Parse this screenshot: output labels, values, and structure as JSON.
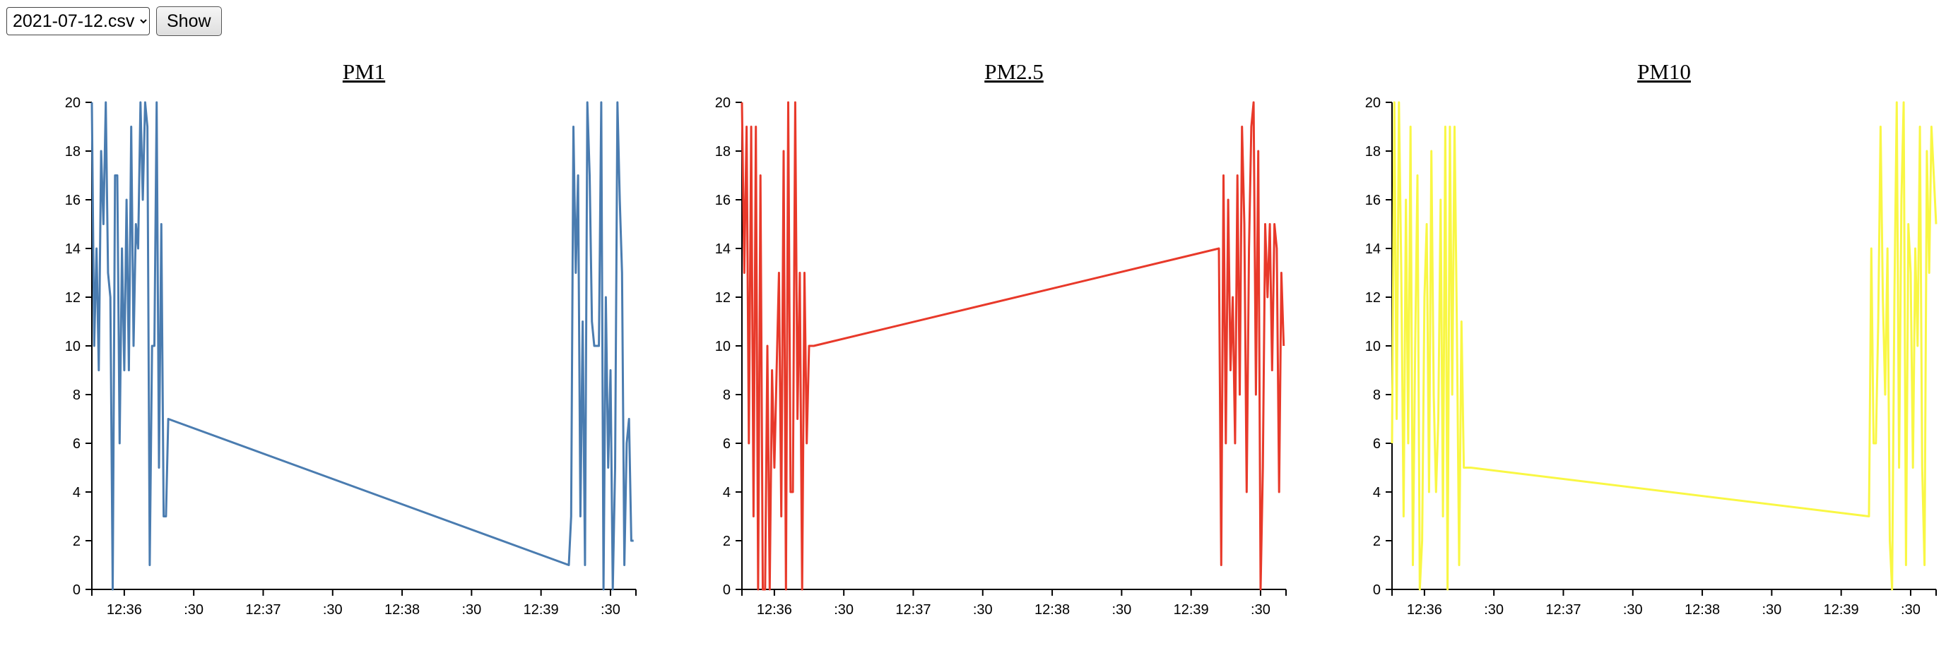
{
  "controls": {
    "file_select": {
      "selected": "2021-07-12.csv"
    },
    "show_label": "Show"
  },
  "chart_data": [
    {
      "type": "line",
      "title": "PM1",
      "color": "#4a7cb0",
      "xlabel": "",
      "ylabel": "",
      "ylim": [
        0,
        20
      ],
      "y_ticks": [
        0,
        2,
        4,
        6,
        8,
        10,
        12,
        14,
        16,
        18,
        20
      ],
      "x_ticks": [
        {
          "t": "12:36:00",
          "label": "12:36"
        },
        {
          "t": "12:36:30",
          "label": ":30"
        },
        {
          "t": "12:37:00",
          "label": "12:37"
        },
        {
          "t": "12:37:30",
          "label": ":30"
        },
        {
          "t": "12:38:00",
          "label": "12:38"
        },
        {
          "t": "12:38:30",
          "label": ":30"
        },
        {
          "t": "12:39:00",
          "label": "12:39"
        },
        {
          "t": "12:39:30",
          "label": ":30"
        }
      ],
      "xlim": [
        "12:35:46",
        "12:39:41"
      ],
      "grid": false,
      "x": [
        "12:35:46",
        "12:35:47",
        "12:35:48",
        "12:35:49",
        "12:35:50",
        "12:35:51",
        "12:35:52",
        "12:35:53",
        "12:35:54",
        "12:35:55",
        "12:35:56",
        "12:35:57",
        "12:35:58",
        "12:35:59",
        "12:36:00",
        "12:36:01",
        "12:36:02",
        "12:36:03",
        "12:36:04",
        "12:36:05",
        "12:36:06",
        "12:36:07",
        "12:36:08",
        "12:36:09",
        "12:36:10",
        "12:36:11",
        "12:36:12",
        "12:36:13",
        "12:36:14",
        "12:36:15",
        "12:36:16",
        "12:36:17",
        "12:36:18",
        "12:36:19",
        "12:39:12",
        "12:39:13",
        "12:39:14",
        "12:39:15",
        "12:39:16",
        "12:39:17",
        "12:39:18",
        "12:39:19",
        "12:39:20",
        "12:39:21",
        "12:39:22",
        "12:39:23",
        "12:39:24",
        "12:39:25",
        "12:39:26",
        "12:39:27",
        "12:39:28",
        "12:39:29",
        "12:39:30",
        "12:39:31",
        "12:39:32",
        "12:39:33",
        "12:39:34",
        "12:39:35",
        "12:39:36",
        "12:39:37",
        "12:39:38",
        "12:39:39",
        "12:39:40"
      ],
      "values": [
        20,
        10,
        14,
        9,
        18,
        15,
        20,
        13,
        12,
        0,
        17,
        17,
        6,
        14,
        9,
        16,
        9,
        19,
        10,
        15,
        14,
        20,
        16,
        20,
        19,
        1,
        10,
        10,
        20,
        5,
        15,
        3,
        3,
        7,
        1,
        3,
        19,
        13,
        17,
        3,
        11,
        1,
        20,
        17,
        11,
        10,
        10,
        10,
        20,
        0,
        12,
        5,
        9,
        0,
        5,
        20,
        16,
        13,
        1,
        6,
        7,
        2,
        2
      ]
    },
    {
      "type": "line",
      "title": "PM2.5",
      "color": "#e8392a",
      "xlabel": "",
      "ylabel": "",
      "ylim": [
        0,
        20
      ],
      "y_ticks": [
        0,
        2,
        4,
        6,
        8,
        10,
        12,
        14,
        16,
        18,
        20
      ],
      "x_ticks": [
        {
          "t": "12:36:00",
          "label": "12:36"
        },
        {
          "t": "12:36:30",
          "label": ":30"
        },
        {
          "t": "12:37:00",
          "label": "12:37"
        },
        {
          "t": "12:37:30",
          "label": ":30"
        },
        {
          "t": "12:38:00",
          "label": "12:38"
        },
        {
          "t": "12:38:30",
          "label": ":30"
        },
        {
          "t": "12:39:00",
          "label": "12:39"
        },
        {
          "t": "12:39:30",
          "label": ":30"
        }
      ],
      "xlim": [
        "12:35:46",
        "12:39:41"
      ],
      "grid": false,
      "x": [
        "12:35:46",
        "12:35:47",
        "12:35:48",
        "12:35:49",
        "12:35:50",
        "12:35:51",
        "12:35:52",
        "12:35:53",
        "12:35:54",
        "12:35:55",
        "12:35:56",
        "12:35:57",
        "12:35:58",
        "12:35:59",
        "12:36:00",
        "12:36:01",
        "12:36:02",
        "12:36:03",
        "12:36:04",
        "12:36:05",
        "12:36:06",
        "12:36:07",
        "12:36:08",
        "12:36:09",
        "12:36:10",
        "12:36:11",
        "12:36:12",
        "12:36:13",
        "12:36:14",
        "12:36:15",
        "12:36:16",
        "12:36:17",
        "12:39:12",
        "12:39:13",
        "12:39:14",
        "12:39:15",
        "12:39:16",
        "12:39:17",
        "12:39:18",
        "12:39:19",
        "12:39:20",
        "12:39:21",
        "12:39:22",
        "12:39:23",
        "12:39:24",
        "12:39:25",
        "12:39:26",
        "12:39:27",
        "12:39:28",
        "12:39:29",
        "12:39:30",
        "12:39:31",
        "12:39:32",
        "12:39:33",
        "12:39:34",
        "12:39:35",
        "12:39:36",
        "12:39:37",
        "12:39:38",
        "12:39:39",
        "12:39:40"
      ],
      "values": [
        20,
        13,
        19,
        6,
        19,
        3,
        19,
        0,
        17,
        0,
        0,
        10,
        0,
        9,
        5,
        9,
        13,
        3,
        18,
        0,
        20,
        4,
        4,
        20,
        7,
        13,
        0,
        13,
        6,
        10,
        10,
        10,
        14,
        1,
        17,
        6,
        16,
        9,
        12,
        6,
        17,
        8,
        19,
        15,
        4,
        14,
        19,
        20,
        8,
        18,
        0,
        5,
        15,
        12,
        15,
        9,
        15,
        14,
        4,
        13,
        10
      ]
    },
    {
      "type": "line",
      "title": "PM10",
      "color": "#f9f744",
      "xlabel": "",
      "ylabel": "",
      "ylim": [
        0,
        20
      ],
      "y_ticks": [
        0,
        2,
        4,
        6,
        8,
        10,
        12,
        14,
        16,
        18,
        20
      ],
      "x_ticks": [
        {
          "t": "12:36:00",
          "label": "12:36"
        },
        {
          "t": "12:36:30",
          "label": ":30"
        },
        {
          "t": "12:37:00",
          "label": "12:37"
        },
        {
          "t": "12:37:30",
          "label": ":30"
        },
        {
          "t": "12:38:00",
          "label": "12:38"
        },
        {
          "t": "12:38:30",
          "label": ":30"
        },
        {
          "t": "12:39:00",
          "label": "12:39"
        },
        {
          "t": "12:39:30",
          "label": ":30"
        }
      ],
      "xlim": [
        "12:35:46",
        "12:39:41"
      ],
      "grid": false,
      "x": [
        "12:35:46",
        "12:35:47",
        "12:35:48",
        "12:35:49",
        "12:35:50",
        "12:35:51",
        "12:35:52",
        "12:35:53",
        "12:35:54",
        "12:35:55",
        "12:35:56",
        "12:35:57",
        "12:35:58",
        "12:35:59",
        "12:36:00",
        "12:36:01",
        "12:36:02",
        "12:36:03",
        "12:36:04",
        "12:36:05",
        "12:36:06",
        "12:36:07",
        "12:36:08",
        "12:36:09",
        "12:36:10",
        "12:36:11",
        "12:36:12",
        "12:36:13",
        "12:36:14",
        "12:36:15",
        "12:36:16",
        "12:36:17",
        "12:36:18",
        "12:36:19",
        "12:36:20",
        "12:39:12",
        "12:39:13",
        "12:39:14",
        "12:39:15",
        "12:39:16",
        "12:39:17",
        "12:39:18",
        "12:39:19",
        "12:39:20",
        "12:39:21",
        "12:39:22",
        "12:39:23",
        "12:39:24",
        "12:39:25",
        "12:39:26",
        "12:39:27",
        "12:39:28",
        "12:39:29",
        "12:39:30",
        "12:39:31",
        "12:39:32",
        "12:39:33",
        "12:39:34",
        "12:39:35",
        "12:39:36",
        "12:39:37",
        "12:39:38",
        "12:39:39",
        "12:39:40",
        "12:39:41"
      ],
      "values": [
        6,
        20,
        7,
        20,
        13,
        3,
        16,
        6,
        19,
        1,
        10,
        17,
        0,
        2,
        12,
        15,
        4,
        18,
        8,
        4,
        7,
        16,
        3,
        19,
        0,
        19,
        8,
        19,
        11,
        1,
        11,
        5,
        5,
        5,
        5,
        3,
        14,
        6,
        6,
        11,
        19,
        12,
        8,
        14,
        2,
        0,
        12,
        20,
        5,
        16,
        20,
        1,
        15,
        13,
        5,
        14,
        10,
        19,
        5,
        1,
        18,
        13,
        19,
        17,
        15
      ]
    }
  ]
}
